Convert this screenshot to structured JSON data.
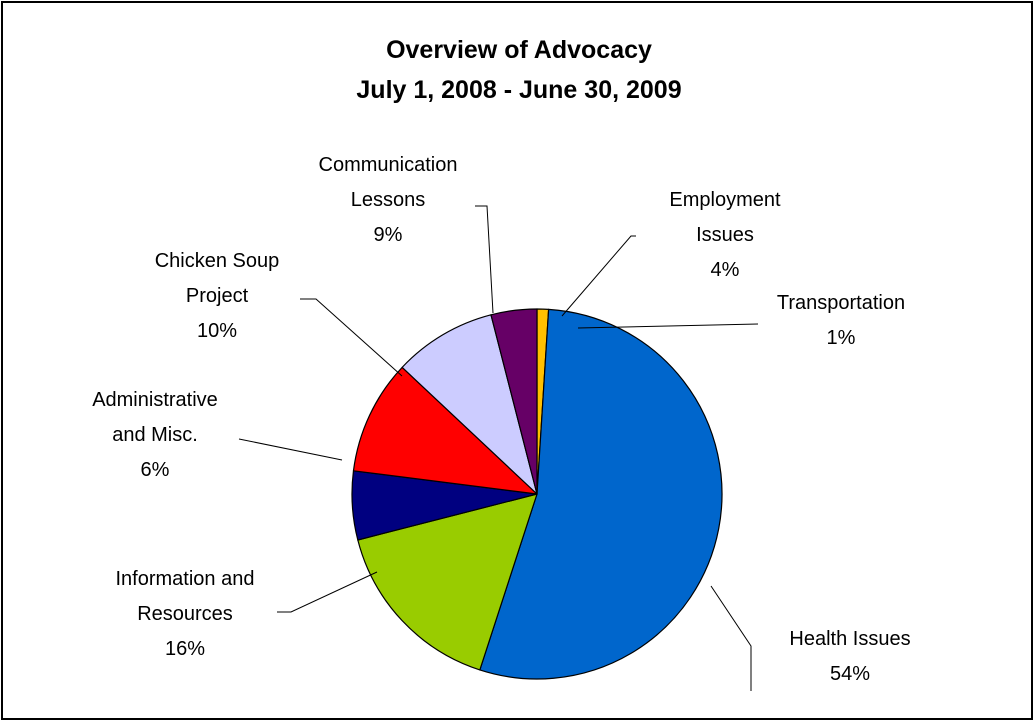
{
  "chart_data": {
    "type": "pie",
    "title": "Overview of Advocacy",
    "subtitle": "July 1, 2008 - June 30, 2009",
    "start_angle_deg": 0,
    "direction": "clockwise",
    "legend": "none",
    "slices": [
      {
        "label": "Transportation",
        "value": 1,
        "pct_label": "1%",
        "color": "#FFC000"
      },
      {
        "label": "Health Issues",
        "value": 54,
        "pct_label": "54%",
        "color": "#0066CC"
      },
      {
        "label": "Information and Resources",
        "value": 16,
        "pct_label": "16%",
        "color": "#99CC00"
      },
      {
        "label": "Administrative and Misc.",
        "value": 6,
        "pct_label": "6%",
        "color": "#000080"
      },
      {
        "label": "Chicken Soup Project",
        "value": 10,
        "pct_label": "10%",
        "color": "#FF0000"
      },
      {
        "label": "Communication Lessons",
        "value": 9,
        "pct_label": "9%",
        "color": "#CCCCFF"
      },
      {
        "label": "Employment Issues",
        "value": 4,
        "pct_label": "4%",
        "color": "#660066"
      }
    ]
  }
}
